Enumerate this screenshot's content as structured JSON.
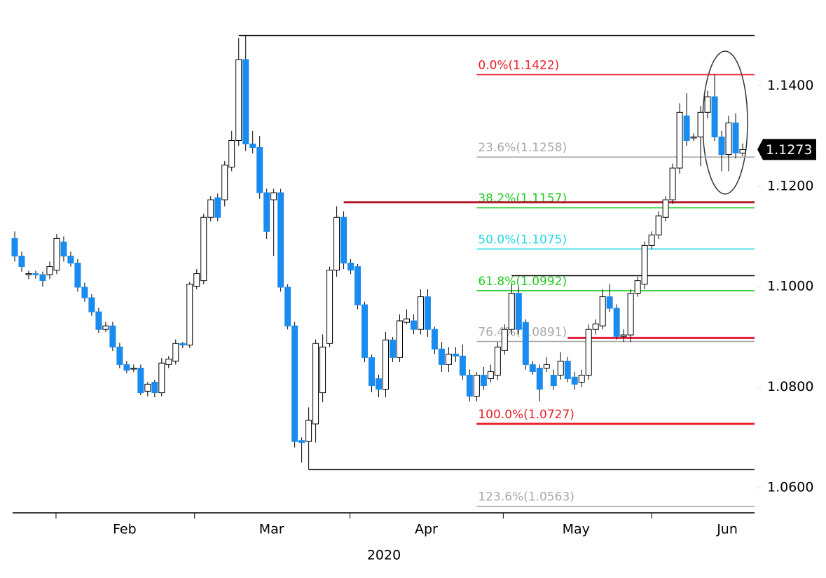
{
  "chart_data": {
    "type": "candlestick",
    "candles": [
      [
        1.1096,
        1.111,
        1.105,
        1.1061
      ],
      [
        1.1061,
        1.107,
        1.103,
        1.104
      ],
      [
        1.1024,
        1.1032,
        1.1015,
        1.1026
      ],
      [
        1.1026,
        1.1032,
        1.1016,
        1.1024
      ],
      [
        1.1024,
        1.103,
        1.1,
        1.1012
      ],
      [
        1.1024,
        1.105,
        1.1015,
        1.104
      ],
      [
        1.1033,
        1.1105,
        1.1025,
        1.1096
      ],
      [
        1.1089,
        1.11,
        1.105,
        1.1061
      ],
      [
        1.1061,
        1.107,
        1.104,
        1.1047
      ],
      [
        1.1047,
        1.1055,
        1.099,
        1.0999
      ],
      [
        1.0999,
        1.1008,
        1.097,
        1.0978
      ],
      [
        1.0978,
        1.0985,
        1.0942,
        1.095
      ],
      [
        1.095,
        1.0958,
        1.0908,
        1.0915
      ],
      [
        1.0915,
        1.093,
        1.091,
        1.0922
      ],
      [
        1.0922,
        1.093,
        1.0872,
        1.088
      ],
      [
        1.088,
        1.0888,
        1.0838,
        1.0845
      ],
      [
        1.0845,
        1.0852,
        1.0828,
        1.0834
      ],
      [
        1.0836,
        1.0845,
        1.083,
        1.0838
      ],
      [
        1.0838,
        1.0845,
        1.0784,
        1.0789
      ],
      [
        1.0792,
        1.081,
        1.0782,
        1.0806
      ],
      [
        1.081,
        1.0815,
        1.078,
        1.0789
      ],
      [
        1.0789,
        1.0858,
        1.0782,
        1.0848
      ],
      [
        1.0845,
        1.0862,
        1.0838,
        1.0856
      ],
      [
        1.0852,
        1.0895,
        1.0845,
        1.0887
      ],
      [
        1.0887,
        1.089,
        1.0878,
        1.0884
      ],
      [
        1.0884,
        1.101,
        1.0878,
        1.1005
      ],
      [
        1.1001,
        1.1035,
        1.0995,
        1.1026
      ],
      [
        1.1012,
        1.1145,
        1.1005,
        1.1138
      ],
      [
        1.1138,
        1.118,
        1.113,
        1.1173
      ],
      [
        1.1177,
        1.1185,
        1.113,
        1.1138
      ],
      [
        1.1173,
        1.125,
        1.116,
        1.1242
      ],
      [
        1.1238,
        1.131,
        1.123,
        1.1291
      ],
      [
        1.1291,
        1.1495,
        1.128,
        1.1452
      ],
      [
        1.1452,
        1.15,
        1.127,
        1.1284
      ],
      [
        1.1284,
        1.131,
        1.1265,
        1.1277
      ],
      [
        1.1277,
        1.13,
        1.1175,
        1.1187
      ],
      [
        1.1187,
        1.1195,
        1.1095,
        1.111
      ],
      [
        1.1173,
        1.1195,
        1.1061,
        1.1187
      ],
      [
        1.1187,
        1.1195,
        1.099,
        1.0999
      ],
      [
        1.0999,
        1.1005,
        1.0915,
        1.0922
      ],
      [
        1.0922,
        1.093,
        1.068,
        1.0692
      ],
      [
        1.0694,
        1.07,
        1.065,
        1.069
      ],
      [
        1.0692,
        1.076,
        1.0636,
        1.0734
      ],
      [
        1.0727,
        1.0895,
        1.069,
        1.0887
      ],
      [
        1.0789,
        1.0905,
        1.077,
        1.088
      ],
      [
        1.0887,
        1.104,
        1.088,
        1.1033
      ],
      [
        1.1033,
        1.116,
        1.102,
        1.1138
      ],
      [
        1.1138,
        1.115,
        1.1035,
        1.1047
      ],
      [
        1.1047,
        1.1055,
        1.1025,
        1.1033
      ],
      [
        1.104,
        1.1045,
        1.0955,
        1.0964
      ],
      [
        1.0964,
        1.097,
        1.085,
        1.0859
      ],
      [
        1.0859,
        1.0865,
        1.079,
        1.0803
      ],
      [
        1.0817,
        1.0825,
        1.078,
        1.0796
      ],
      [
        1.0796,
        1.091,
        1.078,
        1.0894
      ],
      [
        1.0894,
        1.09,
        1.085,
        1.0859
      ],
      [
        1.0859,
        1.0945,
        1.085,
        1.0932
      ],
      [
        1.0929,
        1.0955,
        1.0925,
        1.0936
      ],
      [
        1.0932,
        1.0945,
        1.0905,
        1.0915
      ],
      [
        1.0915,
        1.0995,
        1.0905,
        1.098
      ],
      [
        1.098,
        1.0995,
        1.09,
        1.0915
      ],
      [
        1.0915,
        1.092,
        1.0866,
        1.0876
      ],
      [
        1.0876,
        1.089,
        1.083,
        1.0845
      ],
      [
        1.0845,
        1.088,
        1.083,
        1.0866
      ],
      [
        1.0866,
        1.088,
        1.085,
        1.0862
      ],
      [
        1.0862,
        1.0885,
        1.0815,
        1.0824
      ],
      [
        1.0824,
        1.0835,
        1.0772,
        1.0782
      ],
      [
        1.0782,
        1.083,
        1.0772,
        1.0824
      ],
      [
        1.0824,
        1.084,
        1.0795,
        1.0803
      ],
      [
        1.0817,
        1.0845,
        1.081,
        1.0831
      ],
      [
        1.0824,
        1.089,
        1.0815,
        1.088
      ],
      [
        1.0873,
        1.0925,
        1.0865,
        1.0915
      ],
      [
        1.0915,
        1.1005,
        1.0905,
        1.0987
      ],
      [
        1.0987,
        1.1,
        1.0905,
        1.0915
      ],
      [
        1.0929,
        1.0935,
        1.0835,
        1.0845
      ],
      [
        1.0845,
        1.0852,
        1.0825,
        1.0831
      ],
      [
        1.0838,
        1.0845,
        1.0772,
        1.0796
      ],
      [
        1.0838,
        1.086,
        1.083,
        1.0845
      ],
      [
        1.0824,
        1.0835,
        1.0795,
        1.0803
      ],
      [
        1.0824,
        1.087,
        1.0815,
        1.0852
      ],
      [
        1.0852,
        1.086,
        1.081,
        1.0817
      ],
      [
        1.082,
        1.083,
        1.0795,
        1.0806
      ],
      [
        1.081,
        1.0835,
        1.08,
        1.0824
      ],
      [
        1.0824,
        1.0925,
        1.0815,
        1.0915
      ],
      [
        1.0915,
        1.0935,
        1.0905,
        1.0926
      ],
      [
        1.0922,
        1.0995,
        1.0915,
        1.098
      ],
      [
        1.098,
        1.1005,
        1.095,
        1.0957
      ],
      [
        1.0957,
        1.0965,
        1.0895,
        1.0901
      ],
      [
        1.0901,
        1.0915,
        1.089,
        1.0904
      ],
      [
        1.0904,
        1.0995,
        1.089,
        1.0987
      ],
      [
        1.0987,
        1.102,
        1.098,
        1.1012
      ],
      [
        1.1005,
        1.109,
        1.0995,
        1.1082
      ],
      [
        1.1082,
        1.111,
        1.1075,
        1.1103
      ],
      [
        1.1103,
        1.115,
        1.1095,
        1.1141
      ],
      [
        1.1138,
        1.118,
        1.113,
        1.1173
      ],
      [
        1.1173,
        1.1245,
        1.1165,
        1.1236
      ],
      [
        1.1236,
        1.1365,
        1.1225,
        1.1347
      ],
      [
        1.134,
        1.1385,
        1.128,
        1.1291
      ],
      [
        1.1296,
        1.1305,
        1.129,
        1.1298
      ],
      [
        1.1298,
        1.136,
        1.124,
        1.1347
      ],
      [
        1.1347,
        1.139,
        1.1335,
        1.1378
      ],
      [
        1.1378,
        1.1422,
        1.129,
        1.1298
      ],
      [
        1.1298,
        1.131,
        1.123,
        1.1263
      ],
      [
        1.1263,
        1.134,
        1.123,
        1.1326
      ],
      [
        1.1326,
        1.1345,
        1.1255,
        1.1266
      ],
      [
        1.1266,
        1.1285,
        1.126,
        1.1273
      ]
    ],
    "up_color": "#ffffff",
    "down_color": "#1a8cf0",
    "xlim": [
      -0.3,
      105.7
    ],
    "xticks": [
      5.9,
      25.7,
      47.9,
      69.8,
      91.0
    ],
    "month_labels": [
      {
        "value": 15.7,
        "label": "Feb"
      },
      {
        "value": 36.7,
        "label": "Mar"
      },
      {
        "value": 58.8,
        "label": "Apr"
      },
      {
        "value": 80.2,
        "label": "May"
      },
      {
        "value": 101.8,
        "label": "Jun"
      }
    ],
    "x_label": "2020",
    "ylim": [
      1.055,
      1.1505
    ],
    "yticks": [
      {
        "value": 1.14,
        "label": "1.1400"
      },
      {
        "value": 1.12,
        "label": "1.1200"
      },
      {
        "value": 1.1,
        "label": "1.1000"
      },
      {
        "value": 1.08,
        "label": "1.0800"
      },
      {
        "value": 1.06,
        "label": "1.0600"
      }
    ],
    "last_price": {
      "value": 1.1273,
      "label": "1.1273"
    },
    "fib_start": 66,
    "fib_levels": [
      {
        "label": "0.0%(1.1422)",
        "value": 1.1422,
        "color": "#e8202a"
      },
      {
        "label": "23.6%(1.1258)",
        "value": 1.1258,
        "color": "#a8a8a8"
      },
      {
        "label": "38.2%(1.1157)",
        "value": 1.1157,
        "color": "#22cc22"
      },
      {
        "label": "50.0%(1.1075)",
        "value": 1.1075,
        "color": "#22d8e8"
      },
      {
        "label": "61.8%(1.0992)",
        "value": 1.0992,
        "color": "#22cc22"
      },
      {
        "label": "76.4%(1.0891)",
        "value": 1.0891,
        "color": "#a8a8a8"
      },
      {
        "label": "100.0%(1.0727)",
        "value": 1.0727,
        "color": "#e8202a"
      },
      {
        "label": "123.6%(1.0563)",
        "value": 1.0563,
        "color": "#a8a8a8"
      }
    ],
    "levels": [
      {
        "value": 1.15,
        "start": 32,
        "color": "#000000"
      },
      {
        "value": 1.0636,
        "start": 42,
        "color": "#000000"
      },
      {
        "value": 1.1168,
        "start": 47,
        "color": "#b01c2e"
      },
      {
        "value": 1.1022,
        "start": 71,
        "color": "#000000"
      },
      {
        "value": 1.0898,
        "start": 79,
        "color": "#e8203c"
      }
    ]
  }
}
